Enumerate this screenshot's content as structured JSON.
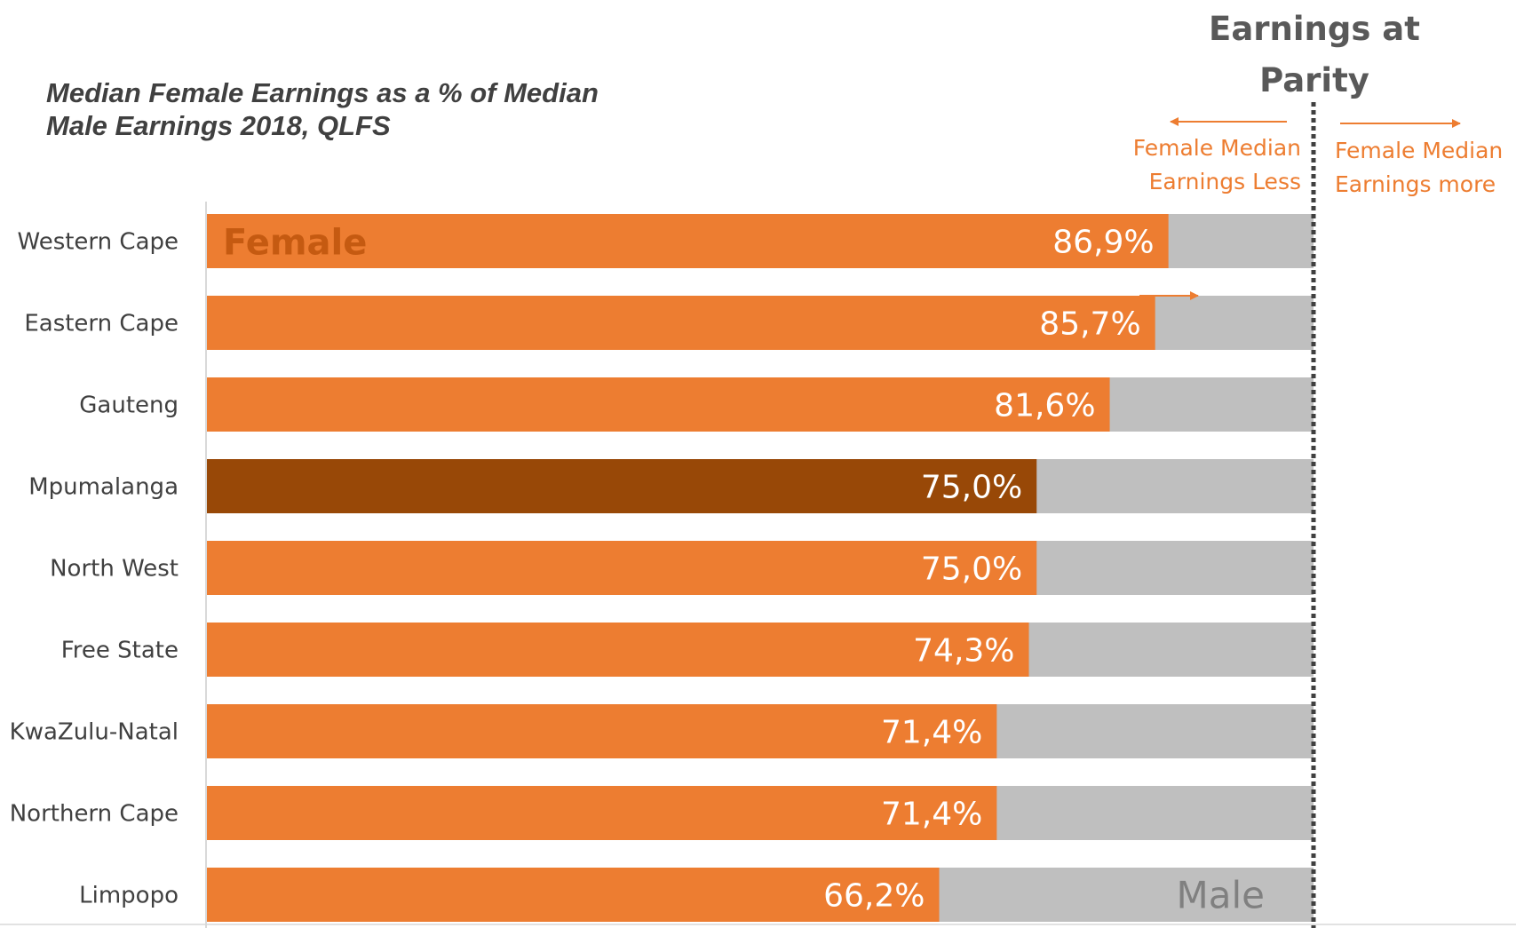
{
  "chart_data": {
    "type": "bar",
    "orientation": "horizontal",
    "title": "Median Female Earnings as a % of Median Male Earnings 2018, QLFS",
    "categories": [
      "Western Cape",
      "Eastern Cape",
      "Gauteng",
      "Mpumalanga",
      "North West",
      "Free State",
      "KwaZulu-Natal",
      "Northern Cape",
      "Limpopo"
    ],
    "series": [
      {
        "name": "Female",
        "values": [
          86.9,
          85.7,
          81.6,
          75.0,
          75.0,
          74.3,
          71.4,
          71.4,
          66.2
        ],
        "color": "#ED7D31"
      },
      {
        "name": "Male",
        "values": [
          100,
          100,
          100,
          100,
          100,
          100,
          100,
          100,
          100
        ],
        "color": "#BFBFBF"
      }
    ],
    "data_labels": [
      "86,9%",
      "85,7%",
      "81,6%",
      "75,0%",
      "75,0%",
      "74,3%",
      "71,4%",
      "71,4%",
      "66,2%"
    ],
    "highlight_category": "Mpumalanga",
    "highlight_color": "#984807",
    "xlim": [
      0,
      100
    ],
    "parity_line": {
      "value": 100,
      "label": "Earnings at Parity"
    },
    "annotations": {
      "less": "Female Median Earnings Less",
      "more": "Female Median Earnings more"
    },
    "in_bar_labels": {
      "female": "Female",
      "male": "Male"
    },
    "colors": {
      "female_label": "#C55A11",
      "male_label": "#808080",
      "annotation": "#ED7D31",
      "title": "#404040",
      "parity_title": "#595959",
      "parity_line": "#404040"
    }
  }
}
